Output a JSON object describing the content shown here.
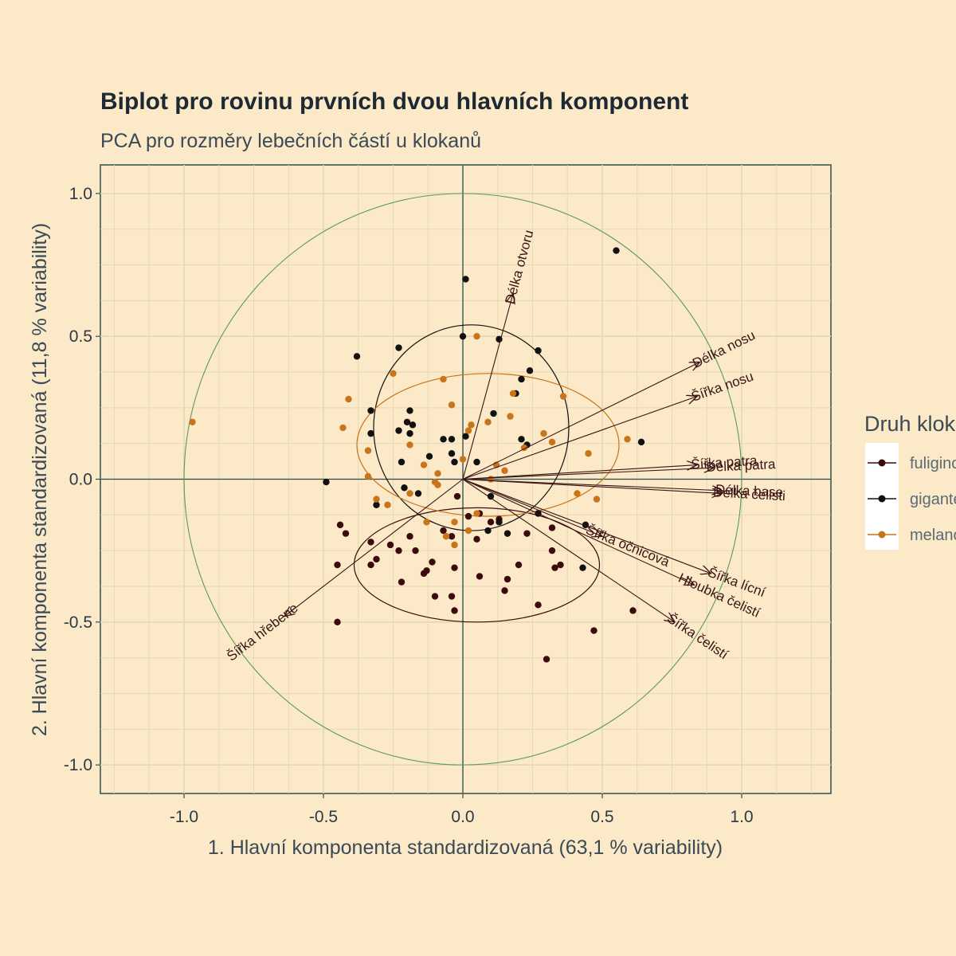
{
  "chart_data": {
    "type": "scatter",
    "title": "Biplot pro rovinu prvních dvou hlavních komponent",
    "subtitle": "PCA pro rozměry lebečních částí u klokanů",
    "xlabel": "1. Hlavní komponenta standardizovaná (63,1 % variability)",
    "ylabel": "2. Hlavní komponenta standardizovaná (11,8 % variability)",
    "xlim": [
      -1.3,
      1.32
    ],
    "ylim": [
      -1.1,
      1.1
    ],
    "xticks": [
      -1.0,
      -0.5,
      0.0,
      0.5,
      1.0
    ],
    "xtick_labels": [
      "-1.0",
      "-0.5",
      "0.0",
      "0.5",
      "1.0"
    ],
    "yticks": [
      -1.0,
      -0.5,
      0.0,
      0.5,
      1.0
    ],
    "ytick_labels": [
      "-1.0",
      "-0.5",
      "0.0",
      "0.5",
      "1.0"
    ],
    "grid": true,
    "unit_circle": {
      "radius": 1.0,
      "color": "#5a9a5a"
    },
    "legend": {
      "title": "Druh klokana",
      "position": "right",
      "entries": [
        {
          "label": "fuliginosus",
          "color": "#3b0a0a"
        },
        {
          "label": "giganteus",
          "color": "#111111"
        },
        {
          "label": "melanops",
          "color": "#c8741a"
        }
      ]
    },
    "series": [
      {
        "name": "fuliginosus",
        "color": "#3b0a0a",
        "ellipse": {
          "cx": 0.05,
          "cy": -0.3,
          "rx": 0.44,
          "ry": 0.2,
          "angle": 0
        },
        "points": [
          [
            -0.44,
            -0.16
          ],
          [
            -0.42,
            -0.19
          ],
          [
            -0.33,
            -0.22
          ],
          [
            -0.33,
            -0.3
          ],
          [
            -0.31,
            -0.28
          ],
          [
            -0.26,
            -0.23
          ],
          [
            -0.23,
            -0.25
          ],
          [
            -0.22,
            -0.36
          ],
          [
            -0.19,
            -0.2
          ],
          [
            -0.17,
            -0.25
          ],
          [
            -0.14,
            -0.33
          ],
          [
            -0.13,
            -0.32
          ],
          [
            -0.11,
            -0.29
          ],
          [
            -0.1,
            -0.41
          ],
          [
            -0.07,
            -0.18
          ],
          [
            -0.04,
            -0.2
          ],
          [
            -0.04,
            -0.41
          ],
          [
            -0.03,
            -0.46
          ],
          [
            -0.03,
            -0.31
          ],
          [
            -0.02,
            -0.06
          ],
          [
            0.02,
            -0.13
          ],
          [
            0.06,
            -0.34
          ],
          [
            0.06,
            -0.12
          ],
          [
            0.1,
            -0.15
          ],
          [
            0.13,
            -0.14
          ],
          [
            0.15,
            -0.39
          ],
          [
            0.16,
            -0.35
          ],
          [
            0.2,
            -0.3
          ],
          [
            0.23,
            -0.19
          ],
          [
            0.27,
            -0.44
          ],
          [
            0.32,
            -0.17
          ],
          [
            0.32,
            -0.25
          ],
          [
            0.33,
            -0.31
          ],
          [
            0.35,
            -0.3
          ],
          [
            0.3,
            -0.63
          ],
          [
            0.47,
            -0.53
          ],
          [
            0.61,
            -0.46
          ],
          [
            -0.45,
            -0.5
          ],
          [
            -0.45,
            -0.3
          ],
          [
            0.05,
            -0.21
          ]
        ]
      },
      {
        "name": "giganteus",
        "color": "#111111",
        "ellipse": {
          "cx": 0.03,
          "cy": 0.18,
          "rx": 0.35,
          "ry": 0.36,
          "angle": 0
        },
        "points": [
          [
            0.55,
            0.8
          ],
          [
            0.01,
            0.7
          ],
          [
            -0.38,
            0.43
          ],
          [
            -0.23,
            0.46
          ],
          [
            0.0,
            0.5
          ],
          [
            0.13,
            0.49
          ],
          [
            0.27,
            0.45
          ],
          [
            0.24,
            0.38
          ],
          [
            0.21,
            0.35
          ],
          [
            0.19,
            0.3
          ],
          [
            -0.33,
            0.24
          ],
          [
            -0.19,
            0.24
          ],
          [
            -0.2,
            0.2
          ],
          [
            -0.18,
            0.19
          ],
          [
            -0.23,
            0.17
          ],
          [
            -0.19,
            0.16
          ],
          [
            0.11,
            0.23
          ],
          [
            0.21,
            0.14
          ],
          [
            0.23,
            0.12
          ],
          [
            -0.07,
            0.14
          ],
          [
            -0.04,
            0.14
          ],
          [
            -0.04,
            0.09
          ],
          [
            -0.12,
            0.08
          ],
          [
            -0.03,
            0.06
          ],
          [
            0.05,
            0.06
          ],
          [
            0.64,
            0.13
          ],
          [
            -0.49,
            -0.01
          ],
          [
            -0.31,
            -0.09
          ],
          [
            -0.21,
            -0.03
          ],
          [
            -0.16,
            -0.05
          ],
          [
            0.1,
            -0.06
          ],
          [
            0.09,
            -0.18
          ],
          [
            0.13,
            -0.15
          ],
          [
            0.27,
            -0.12
          ],
          [
            0.44,
            -0.16
          ],
          [
            0.43,
            -0.31
          ],
          [
            0.16,
            -0.19
          ],
          [
            -0.33,
            0.16
          ],
          [
            0.01,
            0.15
          ],
          [
            -0.22,
            0.06
          ]
        ]
      },
      {
        "name": "melanops",
        "color": "#c8741a",
        "ellipse": {
          "cx": 0.09,
          "cy": 0.12,
          "rx": 0.47,
          "ry": 0.25,
          "angle": 0
        },
        "points": [
          [
            -0.97,
            0.2
          ],
          [
            -0.25,
            0.37
          ],
          [
            -0.07,
            0.35
          ],
          [
            0.05,
            0.5
          ],
          [
            -0.41,
            0.28
          ],
          [
            -0.43,
            0.18
          ],
          [
            -0.34,
            0.1
          ],
          [
            -0.34,
            0.01
          ],
          [
            -0.19,
            0.12
          ],
          [
            -0.14,
            0.05
          ],
          [
            -0.09,
            0.02
          ],
          [
            -0.09,
            -0.02
          ],
          [
            -0.04,
            0.26
          ],
          [
            0.02,
            0.17
          ],
          [
            0.03,
            0.19
          ],
          [
            0.09,
            0.2
          ],
          [
            0.18,
            0.3
          ],
          [
            0.17,
            0.22
          ],
          [
            0.22,
            0.11
          ],
          [
            0.29,
            0.16
          ],
          [
            0.32,
            0.13
          ],
          [
            0.36,
            0.29
          ],
          [
            0.45,
            0.09
          ],
          [
            0.59,
            0.14
          ],
          [
            0.41,
            -0.05
          ],
          [
            0.48,
            -0.07
          ],
          [
            -0.13,
            -0.15
          ],
          [
            -0.06,
            -0.2
          ],
          [
            -0.03,
            -0.23
          ],
          [
            0.02,
            -0.18
          ],
          [
            -0.19,
            -0.05
          ],
          [
            -0.31,
            -0.07
          ],
          [
            -0.27,
            -0.09
          ],
          [
            -0.1,
            -0.01
          ],
          [
            0.05,
            -0.12
          ],
          [
            0.0,
            0.07
          ],
          [
            0.12,
            0.05
          ],
          [
            0.15,
            0.03
          ],
          [
            -0.03,
            -0.15
          ],
          [
            0.1,
            0.0
          ]
        ]
      }
    ],
    "loadings": [
      {
        "label": "Délka otvoru",
        "x": 0.18,
        "y": 0.65
      },
      {
        "label": "Délka nosu",
        "x": 0.85,
        "y": 0.41
      },
      {
        "label": "Šířka nosu",
        "x": 0.84,
        "y": 0.29
      },
      {
        "label": "Šířka patra",
        "x": 0.84,
        "y": 0.05
      },
      {
        "label": "Délka patra",
        "x": 0.9,
        "y": 0.04
      },
      {
        "label": "Délka base",
        "x": 0.93,
        "y": -0.04
      },
      {
        "label": "Délka čelisti",
        "x": 0.93,
        "y": -0.05
      },
      {
        "label": "Šířka očnicová",
        "x": 0.5,
        "y": -0.2
      },
      {
        "label": "Šířka lícní",
        "x": 0.89,
        "y": -0.33
      },
      {
        "label": "Hloubka čelistí",
        "x": 0.83,
        "y": -0.37
      },
      {
        "label": "Šířka čelistí",
        "x": 0.76,
        "y": -0.5
      },
      {
        "label": "Šířka hřebene",
        "x": -0.64,
        "y": -0.48
      }
    ]
  }
}
